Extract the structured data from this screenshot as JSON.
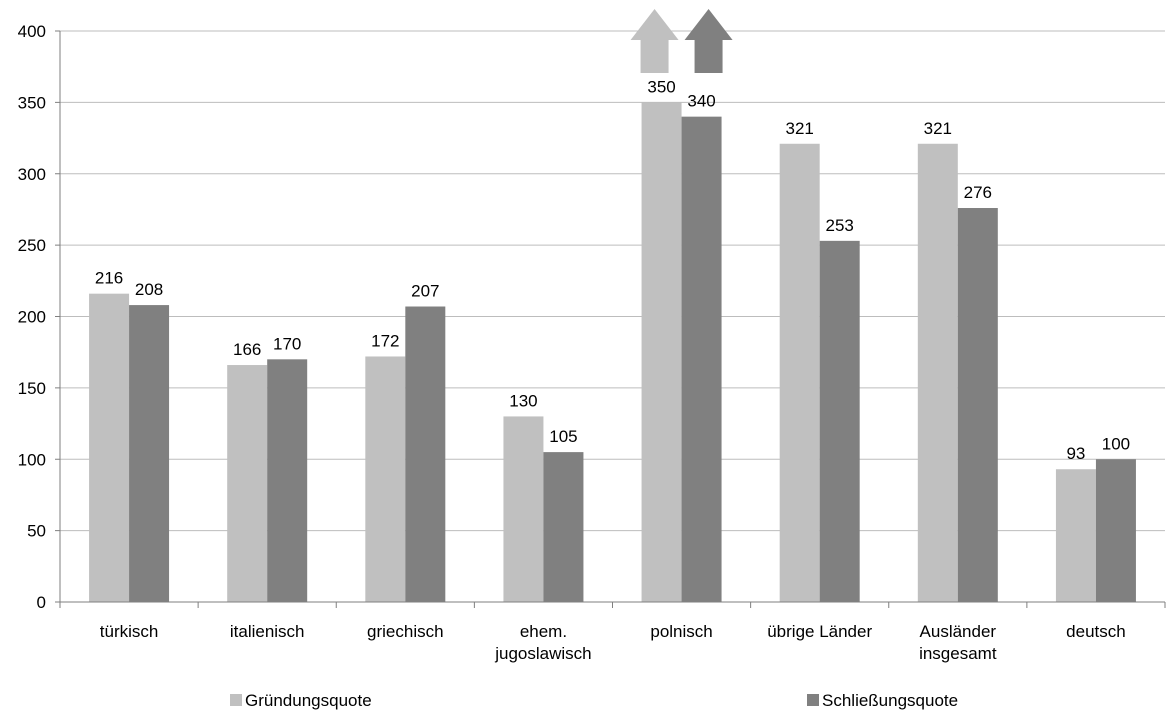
{
  "chart_data": {
    "type": "bar",
    "categories": [
      [
        "türkisch"
      ],
      [
        "italienisch"
      ],
      [
        "griechisch"
      ],
      [
        "ehem.",
        "jugoslawisch"
      ],
      [
        "polnisch"
      ],
      [
        "übrige Länder"
      ],
      [
        "Ausländer",
        "insgesamt"
      ],
      [
        "deutsch"
      ]
    ],
    "series": [
      {
        "name": "Gründungsquote",
        "color": "#c0c0c0",
        "values": [
          216,
          166,
          172,
          130,
          350,
          321,
          321,
          93
        ]
      },
      {
        "name": "Schließungsquote",
        "color": "#808080",
        "values": [
          208,
          170,
          207,
          105,
          340,
          253,
          276,
          100
        ]
      }
    ],
    "ylim": [
      0,
      400
    ],
    "yticks": [
      0,
      50,
      100,
      150,
      200,
      250,
      300,
      350,
      400
    ],
    "grid": true,
    "legend": "bottom",
    "overflow_arrows": {
      "category": "polnisch",
      "icon": "up-arrow-icon"
    }
  }
}
